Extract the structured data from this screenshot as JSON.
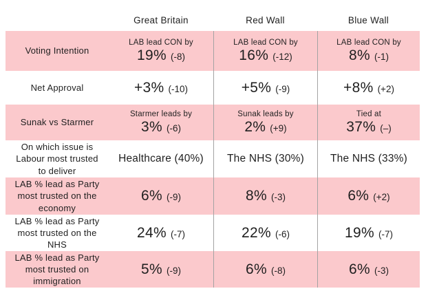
{
  "chart_data": {
    "type": "table",
    "columns": [
      "Great Britain",
      "Red Wall",
      "Blue Wall"
    ],
    "rows": [
      {
        "label": "Voting Intention",
        "shaded": true,
        "cells": [
          {
            "prefix": "LAB lead CON by",
            "value": "19%",
            "change": "(-8)"
          },
          {
            "prefix": "LAB lead CON by",
            "value": "16%",
            "change": "(-12)"
          },
          {
            "prefix": "LAB lead CON by",
            "value": "8%",
            "change": "(-1)"
          }
        ]
      },
      {
        "label": "Net Approval",
        "shaded": false,
        "cells": [
          {
            "value": "+3%",
            "change": "(-10)"
          },
          {
            "value": "+5%",
            "change": "(-9)"
          },
          {
            "value": "+8%",
            "change": "(+2)"
          }
        ]
      },
      {
        "label": "Sunak vs Starmer",
        "shaded": true,
        "cells": [
          {
            "prefix": "Starmer leads by",
            "value": "3%",
            "change": "(-6)"
          },
          {
            "prefix": "Sunak leads by",
            "value": "2%",
            "change": "(+9)"
          },
          {
            "prefix": "Tied at",
            "value": "37%",
            "change": "(–)"
          }
        ]
      },
      {
        "label": "On which issue is Labour most trusted to deliver",
        "shaded": false,
        "cells": [
          {
            "text": "Healthcare (40%)"
          },
          {
            "text": "The NHS (30%)"
          },
          {
            "text": "The NHS (33%)"
          }
        ]
      },
      {
        "label": "LAB % lead as Party most trusted on the economy",
        "shaded": true,
        "cells": [
          {
            "value": "6%",
            "change": "(-9)"
          },
          {
            "value": "8%",
            "change": "(-3)"
          },
          {
            "value": "6%",
            "change": "(+2)"
          }
        ]
      },
      {
        "label": "LAB % lead as Party most trusted on the NHS",
        "shaded": false,
        "cells": [
          {
            "value": "24%",
            "change": "(-7)"
          },
          {
            "value": "22%",
            "change": "(-6)"
          },
          {
            "value": "19%",
            "change": "(-7)"
          }
        ]
      },
      {
        "label": "LAB % lead as Party most trusted on immigration",
        "shaded": true,
        "cells": [
          {
            "value": "5%",
            "change": "(-9)"
          },
          {
            "value": "6%",
            "change": "(-8)"
          },
          {
            "value": "6%",
            "change": "(-3)"
          }
        ]
      }
    ]
  },
  "colors": {
    "row_shade": "#fbc9cc",
    "divider": "#a3a3a3",
    "text": "#1f1f1f",
    "background": "#ffffff"
  }
}
